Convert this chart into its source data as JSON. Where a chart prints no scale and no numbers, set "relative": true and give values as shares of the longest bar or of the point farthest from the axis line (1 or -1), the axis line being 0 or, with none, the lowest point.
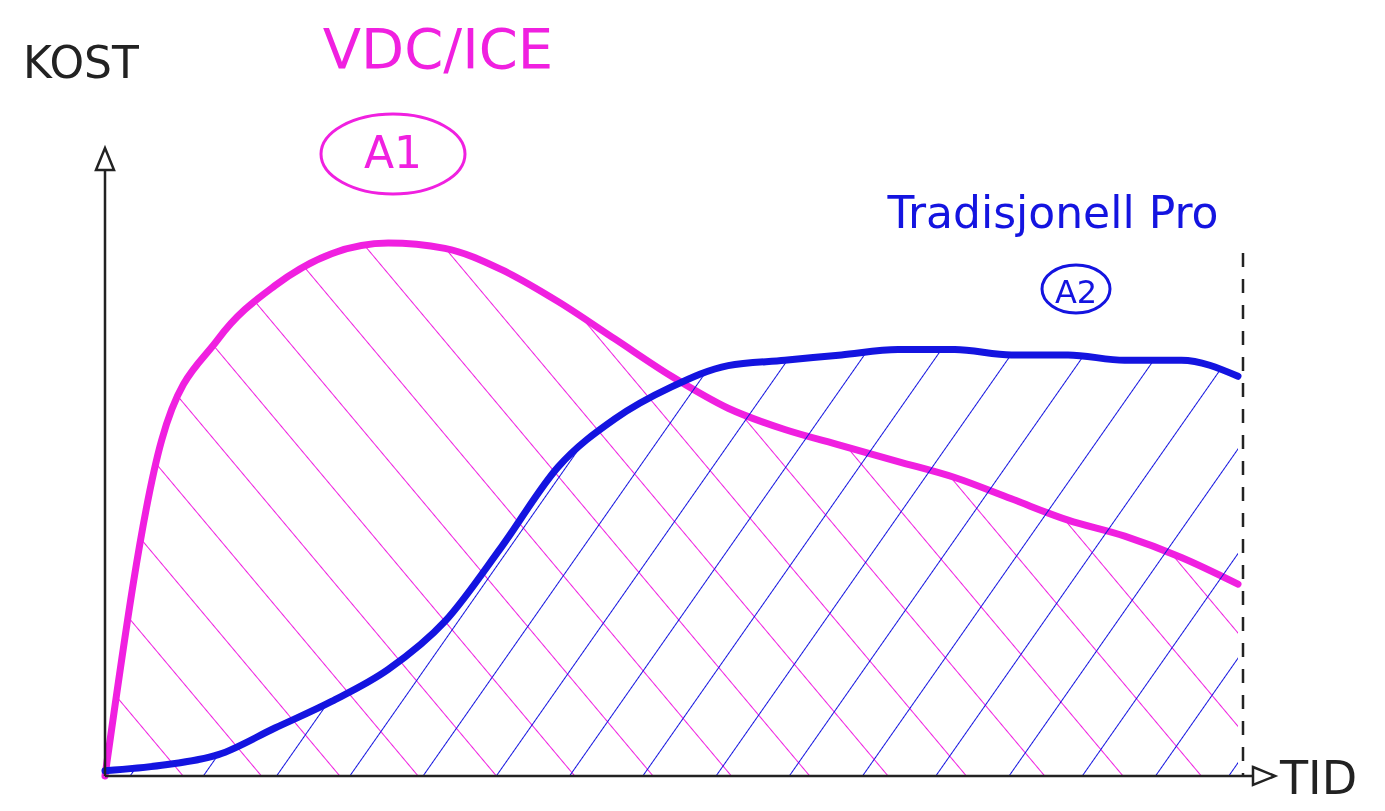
{
  "chart_data": {
    "type": "area",
    "relative": true,
    "xlabel": "TID",
    "ylabel": "KOST",
    "categories": [
      null,
      null,
      null,
      null,
      null,
      null,
      null,
      null,
      null,
      null,
      null,
      null,
      null,
      null,
      null,
      null,
      null,
      null,
      null,
      null,
      null
    ],
    "series": [
      {
        "name": "VDC/ICE",
        "color": "#f020e0",
        "values": [
          0,
          0.63,
          0.82,
          0.92,
          0.98,
          1,
          0.99,
          0.95,
          0.89,
          0.82,
          0.75,
          0.69,
          0.65,
          0.62,
          0.59,
          0.56,
          0.52,
          0.48,
          0.45,
          0.41,
          0.36
        ]
      },
      {
        "name": "Tradisjonell Pro",
        "color": "#1414e0",
        "values": [
          0.01,
          0.02,
          0.04,
          0.09,
          0.14,
          0.2,
          0.29,
          0.43,
          0.58,
          0.67,
          0.73,
          0.77,
          0.78,
          0.79,
          0.8,
          0.8,
          0.79,
          0.79,
          0.78,
          0.78,
          0.75
        ]
      }
    ],
    "annotations": [
      "A1",
      "A2"
    ]
  }
}
